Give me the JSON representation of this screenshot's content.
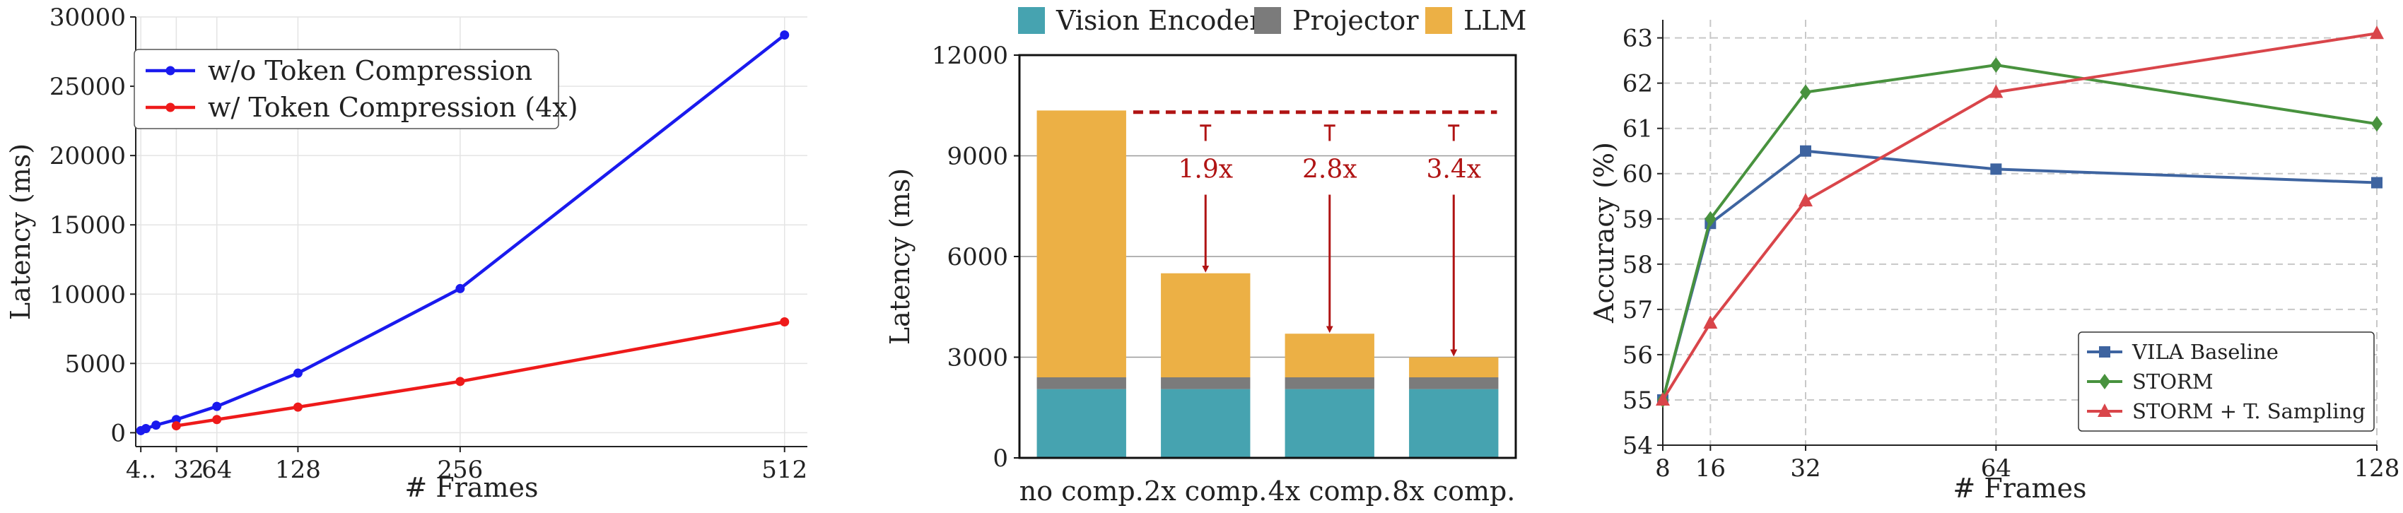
{
  "chart_data": [
    {
      "type": "line",
      "xlabel": "# Frames",
      "ylabel": "Latency (ms)",
      "xlim": [
        0,
        530
      ],
      "ylim": [
        -1000,
        30000
      ],
      "x_ticks": [
        4,
        32,
        64,
        128,
        256,
        512
      ],
      "x_tick_labels": [
        "4..",
        "32",
        "64",
        "128",
        "256",
        "512"
      ],
      "y_ticks": [
        0,
        5000,
        10000,
        15000,
        20000,
        25000,
        30000
      ],
      "grid": true,
      "legend_position": "top-left",
      "series": [
        {
          "name": "w/o Token Compression",
          "color": "#1a1aee",
          "x": [
            4,
            8,
            16,
            32,
            64,
            128,
            256,
            512
          ],
          "y": [
            150,
            300,
            550,
            950,
            1900,
            4300,
            10400,
            28700
          ]
        },
        {
          "name": "w/ Token Compression (4x)",
          "color": "#ee1a1a",
          "x": [
            32,
            64,
            128,
            256,
            512
          ],
          "y": [
            500,
            950,
            1850,
            3700,
            8000
          ]
        }
      ]
    },
    {
      "type": "bar",
      "stacked": true,
      "ylabel": "Latency (ms)",
      "ylim": [
        0,
        12000
      ],
      "y_ticks": [
        0,
        3000,
        6000,
        9000,
        12000
      ],
      "categories": [
        "no comp.",
        "2x comp.",
        "4x comp.",
        "8x comp."
      ],
      "legend_position": "top",
      "series": [
        {
          "name": "Vision Encoder",
          "color": "#46a3b0",
          "values": [
            2050,
            2050,
            2050,
            2050
          ]
        },
        {
          "name": "Projector",
          "color": "#7b7b7b",
          "values": [
            350,
            350,
            350,
            350
          ]
        },
        {
          "name": "LLM",
          "color": "#ecb045",
          "values": [
            7950,
            3100,
            1300,
            600
          ]
        }
      ],
      "reference_line": {
        "value": 10300,
        "color": "#b01414",
        "style": "dashed"
      },
      "annotations": [
        {
          "category": "2x comp.",
          "text": "1.9x"
        },
        {
          "category": "4x comp.",
          "text": "2.8x"
        },
        {
          "category": "8x comp.",
          "text": "3.4x"
        }
      ],
      "annotation_color": "#b01414"
    },
    {
      "type": "line",
      "xlabel": "# Frames",
      "ylabel": "Accuracy (%)",
      "xlim": [
        8,
        128
      ],
      "ylim": [
        54,
        63.4
      ],
      "x_ticks": [
        8,
        16,
        32,
        64,
        128
      ],
      "y_ticks": [
        54,
        55,
        56,
        57,
        58,
        59,
        60,
        61,
        62,
        63
      ],
      "grid": true,
      "legend_position": "bottom-right",
      "series": [
        {
          "name": "VILA Baseline",
          "color": "#3e64a0",
          "marker": "square",
          "x": [
            8,
            16,
            32,
            64,
            128
          ],
          "y": [
            55.0,
            58.9,
            60.5,
            60.1,
            59.8
          ]
        },
        {
          "name": "STORM",
          "color": "#48923e",
          "marker": "diamond",
          "x": [
            8,
            16,
            32,
            64,
            128
          ],
          "y": [
            55.0,
            59.0,
            61.8,
            62.4,
            61.1
          ]
        },
        {
          "name": "STORM + T. Sampling",
          "color": "#d9454a",
          "marker": "triangle",
          "x": [
            8,
            16,
            32,
            64,
            128
          ],
          "y": [
            55.0,
            56.7,
            59.4,
            61.8,
            63.1
          ]
        }
      ]
    }
  ]
}
